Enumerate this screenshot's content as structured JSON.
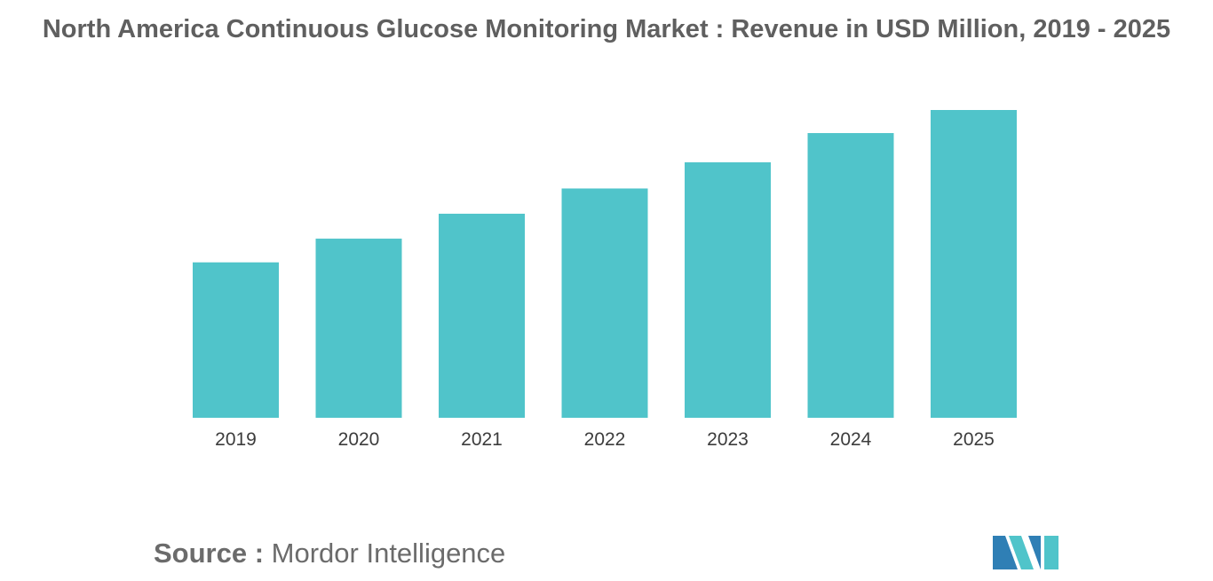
{
  "chart_data": {
    "type": "bar",
    "title": "North America Continuous Glucose Monitoring Market : Revenue in USD Million, 2019 - 2025",
    "categories": [
      "2019",
      "2020",
      "2021",
      "2022",
      "2023",
      "2024",
      "2025"
    ],
    "values": [
      50.5,
      58.2,
      66.3,
      74.5,
      83.0,
      92.5,
      100.0
    ],
    "ylim": [
      0,
      100
    ],
    "xlabel": "",
    "ylabel": "",
    "grid": false,
    "legend": "none",
    "bar_color": "#50c4ca"
  },
  "source": {
    "label": "Source :",
    "value": "Mordor Intelligence"
  },
  "logo": {
    "colors": [
      "#2f7fb5",
      "#50c4ca"
    ]
  }
}
